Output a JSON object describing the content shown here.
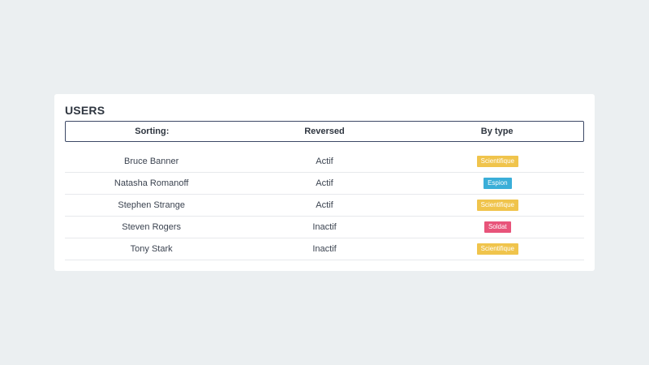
{
  "card": {
    "title": "USERS"
  },
  "headers": [
    {
      "label": "Sorting:"
    },
    {
      "label": "Reversed"
    },
    {
      "label": "By type"
    }
  ],
  "users": [
    {
      "name": "Bruce Banner",
      "status": "Actif",
      "type": "Scientifique",
      "type_color": "#f0c44c"
    },
    {
      "name": "Natasha Romanoff",
      "status": "Actif",
      "type": "Espion",
      "type_color": "#3aaed8"
    },
    {
      "name": "Stephen Strange",
      "status": "Actif",
      "type": "Scientifique",
      "type_color": "#f0c44c"
    },
    {
      "name": "Steven Rogers",
      "status": "Inactif",
      "type": "Soldat",
      "type_color": "#e8547a"
    },
    {
      "name": "Tony Stark",
      "status": "Inactif",
      "type": "Scientifique",
      "type_color": "#f0c44c"
    }
  ]
}
